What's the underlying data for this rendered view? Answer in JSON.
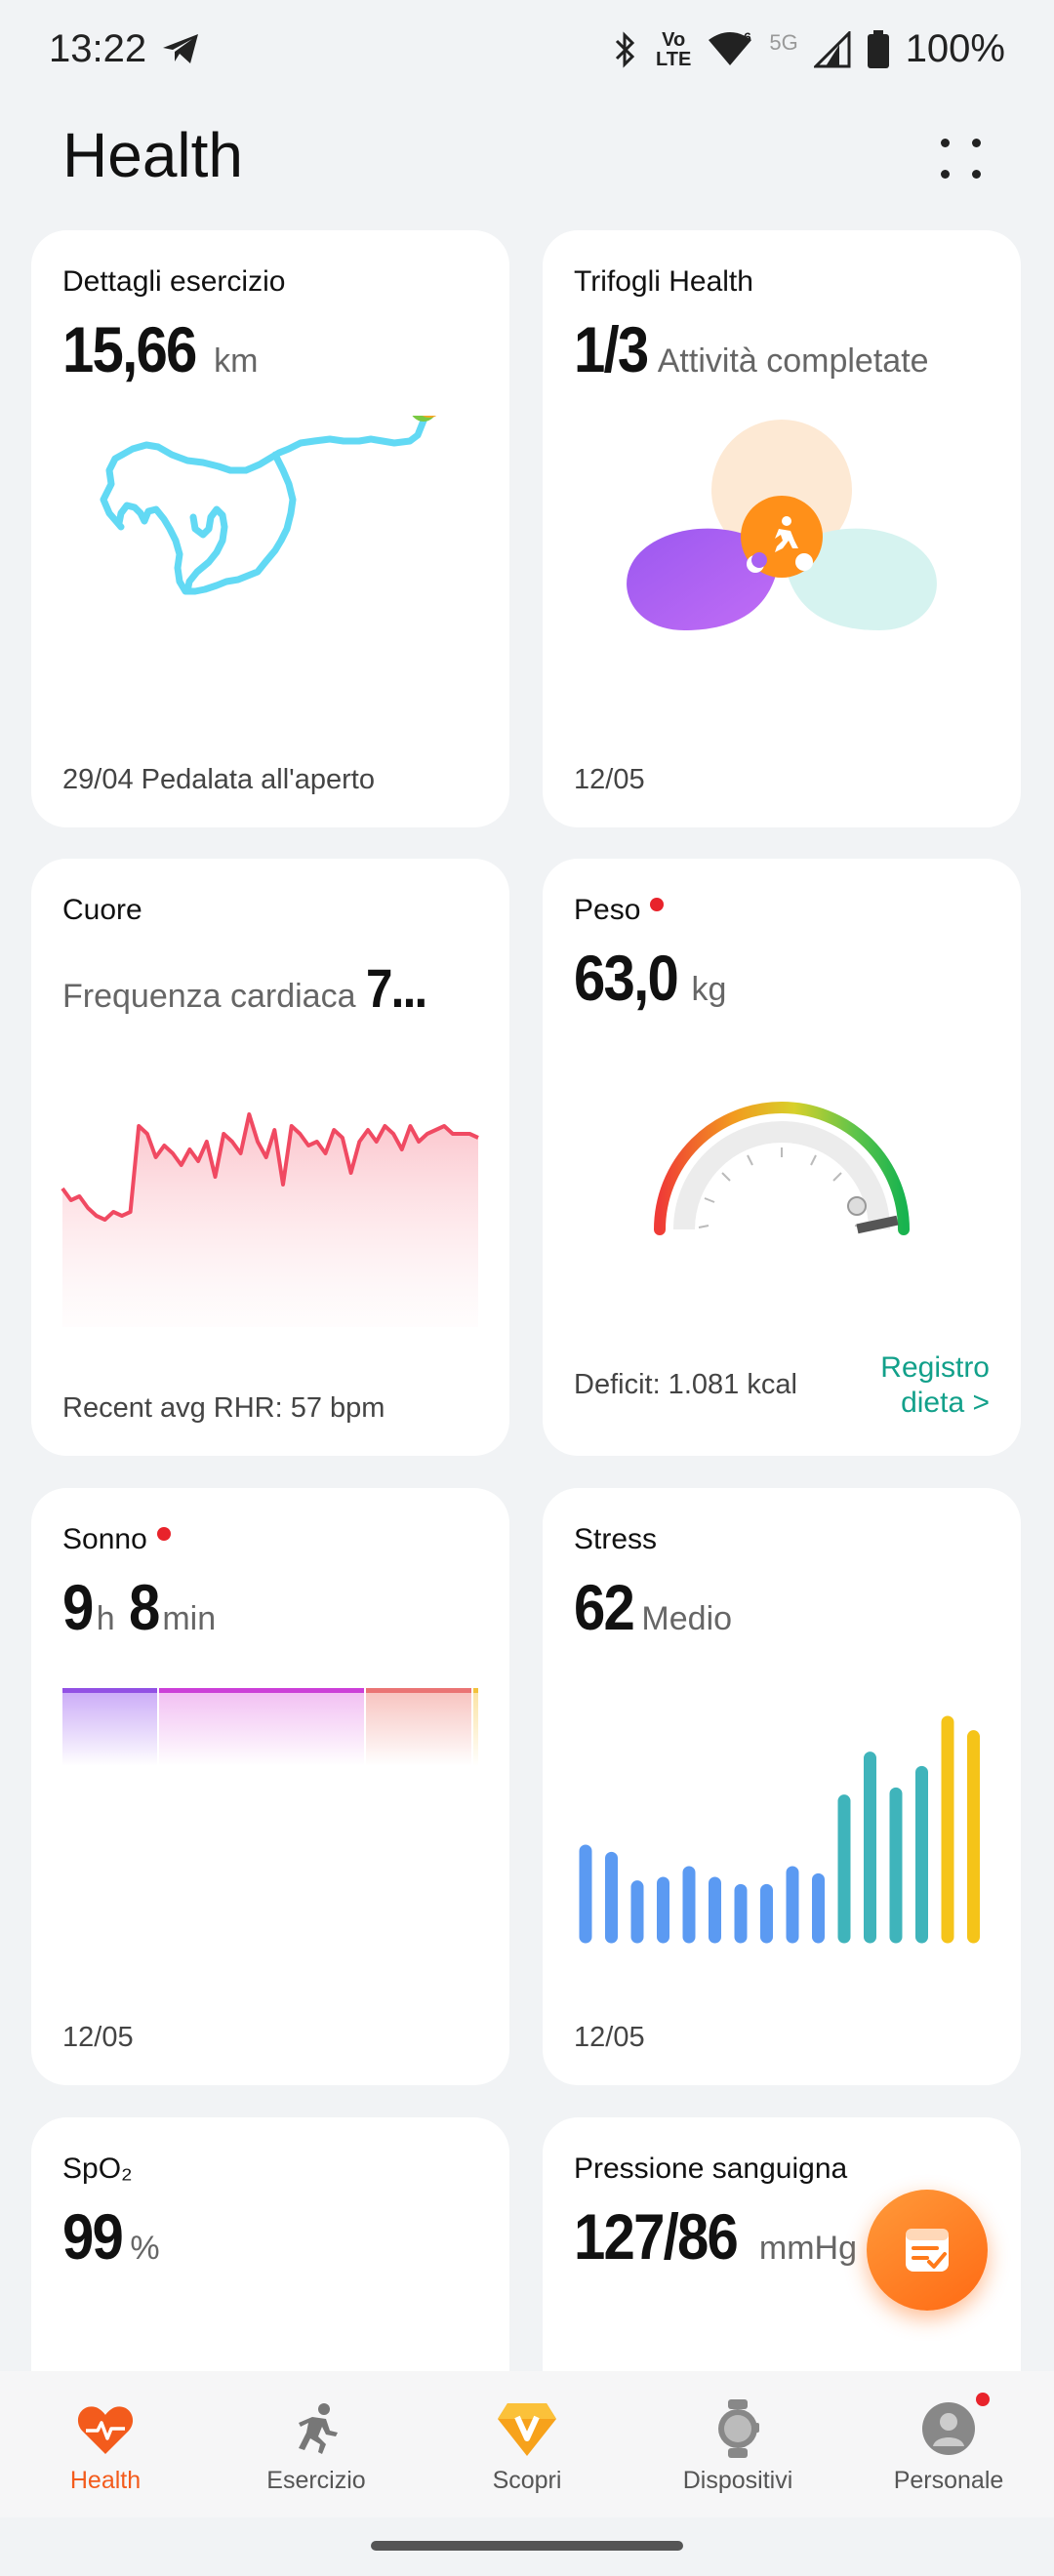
{
  "status_bar": {
    "time": "13:22",
    "battery": "100%",
    "volte_top": "Vo",
    "volte_bottom": "LTE",
    "net_5g": "5G",
    "wifi_num": "6"
  },
  "header": {
    "title": "Health"
  },
  "cards": {
    "exercise": {
      "title": "Dettagli esercizio",
      "value": "15,66",
      "unit": "km",
      "footer": "29/04 Pedalata all'aperto"
    },
    "rings": {
      "title": "Trifogli Health",
      "value": "1/3",
      "unit": "Attività completate",
      "footer": "12/05"
    },
    "heart": {
      "title": "Cuore",
      "subtitle": "Frequenza cardiaca",
      "value": "7...",
      "footer": "Recent avg RHR: 57 bpm"
    },
    "weight": {
      "title": "Peso",
      "value": "63,0",
      "unit": "kg",
      "footer": "Deficit: 1.081 kcal",
      "link_line1": "Registro",
      "link_line2": "dieta >"
    },
    "sleep": {
      "title": "Sonno",
      "hours": "9",
      "h_unit": "h",
      "minutes": "8",
      "m_unit": "min",
      "footer": "12/05"
    },
    "stress": {
      "title": "Stress",
      "value": "62",
      "unit": "Medio",
      "footer": "12/05"
    },
    "spo2": {
      "title": "SpO₂",
      "value": "99",
      "unit": "%"
    },
    "bp": {
      "title": "Pressione sanguigna",
      "value": "127/86",
      "unit": "mmHg"
    }
  },
  "chart_data": [
    {
      "type": "area",
      "x": [
        0,
        1,
        2,
        3,
        4,
        5,
        6,
        7,
        8,
        9,
        10,
        11,
        12,
        13,
        14,
        15,
        16,
        17,
        18,
        19,
        20,
        21,
        22,
        23,
        24,
        25,
        26,
        27,
        28,
        29,
        30,
        31,
        32,
        33,
        34,
        35,
        36,
        37,
        38,
        39,
        40,
        41,
        42,
        43,
        44,
        45,
        46,
        47,
        48,
        49
      ],
      "values": [
        58,
        55,
        56,
        53,
        51,
        50,
        52,
        51,
        52,
        74,
        72,
        66,
        69,
        67,
        64,
        68,
        65,
        70,
        61,
        72,
        70,
        67,
        77,
        70,
        66,
        73,
        59,
        74,
        72,
        69,
        70,
        67,
        73,
        71,
        62,
        70,
        73,
        70,
        74,
        72,
        68,
        74,
        70,
        72,
        73,
        74,
        72,
        72,
        72,
        71
      ],
      "ylim": [
        40,
        80
      ]
    },
    {
      "type": "bar",
      "values": [
        24,
        22,
        14,
        15,
        18,
        15,
        13,
        13,
        18,
        16,
        38,
        50,
        40,
        46,
        60,
        56
      ],
      "ylim": [
        0,
        60
      ],
      "colors": [
        "#5b9af2",
        "#5b9af2",
        "#5b9af2",
        "#5b9af2",
        "#5b9af2",
        "#5b9af2",
        "#5b9af2",
        "#5b9af2",
        "#5b9af2",
        "#5b9af2",
        "#3fb4bb",
        "#3fb4bb",
        "#3fb4bb",
        "#3fb4bb",
        "#f5c419",
        "#f5c419"
      ]
    }
  ]
}
